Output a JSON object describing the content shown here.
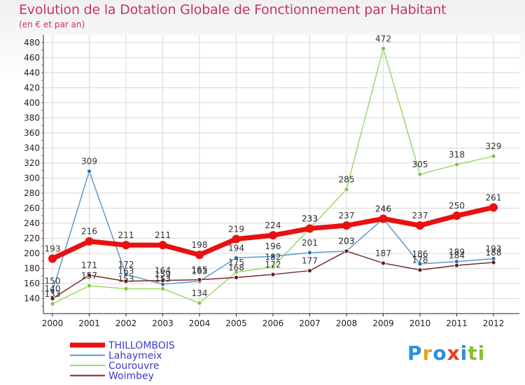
{
  "chart_data": {
    "type": "line",
    "title": "Evolution de la Dotation Globale de Fonctionnement par Habitant",
    "subtitle": "(en € et par an)",
    "x": [
      "2000",
      "2001",
      "2002",
      "2003",
      "2004",
      "2005",
      "2006",
      "2007",
      "2008",
      "2009",
      "2010",
      "2011",
      "2012"
    ],
    "ylim": [
      120,
      490
    ],
    "yticks": [
      140,
      160,
      180,
      200,
      220,
      240,
      260,
      280,
      300,
      320,
      340,
      360,
      380,
      400,
      420,
      440,
      460,
      480
    ],
    "grid": true,
    "legend_position": "bottom-left",
    "series": [
      {
        "name": "THILLOMBOIS",
        "color": "#e81010",
        "point_color": "#e81010",
        "width": 7,
        "radius": 6,
        "values": [
          193,
          216,
          211,
          211,
          198,
          219,
          224,
          233,
          237,
          246,
          237,
          250,
          261
        ]
      },
      {
        "name": "Lahaymeix",
        "color": "#5a9ad0",
        "point_color": "#2a6fb0",
        "width": 1.5,
        "radius": 3,
        "values": [
          150,
          309,
          172,
          159,
          163,
          194,
          196,
          201,
          203,
          246,
          186,
          189,
          193
        ]
      },
      {
        "name": "Courouvre",
        "color": "#9ed86a",
        "point_color": "#7cc840",
        "width": 1.5,
        "radius": 3,
        "values": [
          133,
          157,
          153,
          153,
          134,
          175,
          182,
          233,
          285,
          472,
          305,
          318,
          329
        ]
      },
      {
        "name": "Woimbey",
        "color": "#7a2a2a",
        "point_color": "#6a1a1a",
        "width": 1.5,
        "radius": 3,
        "values": [
          140,
          171,
          163,
          164,
          165,
          168,
          172,
          177,
          203,
          187,
          178,
          184,
          188
        ]
      }
    ]
  },
  "logo": {
    "letters": [
      "P",
      "r",
      "o",
      "x",
      "i",
      "ti"
    ]
  }
}
